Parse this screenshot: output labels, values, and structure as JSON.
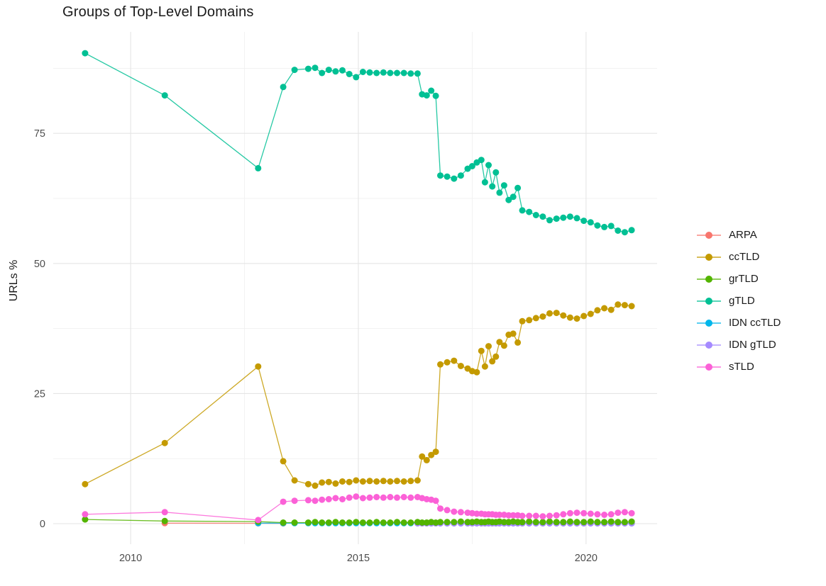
{
  "title": "Groups of Top-Level Domains",
  "axes": {
    "y": {
      "label": "URLs %",
      "ticks": [
        {
          "v": 0,
          "label": "0"
        },
        {
          "v": 25,
          "label": "25"
        },
        {
          "v": 50,
          "label": "50"
        },
        {
          "v": 75,
          "label": "75"
        }
      ],
      "minor": [
        12.5,
        37.5,
        62.5,
        87.5
      ]
    },
    "x": {
      "ticks": [
        {
          "v": 2010,
          "label": "2010"
        },
        {
          "v": 2015,
          "label": "2015"
        },
        {
          "v": 2020,
          "label": "2020"
        }
      ],
      "minor": [
        2012.5,
        2017.5
      ]
    }
  },
  "colors": {
    "background": "#FFFFFF",
    "grid_major": "#E5E5E5",
    "grid_minor": "#F1F1F1",
    "tick_label": "#4D4D4D",
    "title": "#1A1A1A"
  },
  "chart_data": {
    "type": "line",
    "title": "Groups of Top-Level Domains",
    "xlabel": "",
    "ylabel": "URLs %",
    "xlim": [
      2008.3,
      2021.56
    ],
    "ylim": [
      -3.95,
      94.5
    ],
    "grid": true,
    "legend_position": "right",
    "marker_radius": 4.5,
    "x": [
      2009.0,
      2010.75,
      2012.8,
      2013.35,
      2013.6,
      2013.9,
      2014.05,
      2014.2,
      2014.35,
      2014.5,
      2014.65,
      2014.8,
      2014.95,
      2015.1,
      2015.25,
      2015.4,
      2015.55,
      2015.7,
      2015.85,
      2016.0,
      2016.15,
      2016.3,
      2016.4,
      2016.5,
      2016.6,
      2016.7,
      2016.8,
      2016.95,
      2017.1,
      2017.25,
      2017.4,
      2017.5,
      2017.6,
      2017.7,
      2017.78,
      2017.86,
      2017.94,
      2018.02,
      2018.1,
      2018.2,
      2018.3,
      2018.4,
      2018.5,
      2018.6,
      2018.75,
      2018.9,
      2019.05,
      2019.2,
      2019.35,
      2019.5,
      2019.65,
      2019.8,
      2019.95,
      2020.1,
      2020.25,
      2020.4,
      2020.55,
      2020.7,
      2020.85,
      2021.0
    ],
    "series": [
      {
        "name": "ARPA",
        "color": "#F8766D",
        "values": [
          null,
          0.1,
          0.07,
          0.05,
          null,
          null,
          null,
          null,
          null,
          null,
          null,
          null,
          null,
          null,
          null,
          null,
          null,
          null,
          null,
          null,
          null,
          null,
          null,
          null,
          null,
          null,
          null,
          null,
          null,
          null,
          null,
          null,
          null,
          null,
          null,
          null,
          null,
          null,
          null,
          null,
          null,
          null,
          null,
          null,
          null,
          null,
          null,
          null,
          null,
          null,
          null,
          null,
          null,
          null,
          null,
          null,
          null,
          null,
          null,
          null
        ]
      },
      {
        "name": "ccTLD",
        "color": "#C49A00",
        "values": [
          7.6,
          15.5,
          30.2,
          12.0,
          8.3,
          7.6,
          7.3,
          7.9,
          8.0,
          7.7,
          8.1,
          8.0,
          8.3,
          8.1,
          8.2,
          8.1,
          8.2,
          8.1,
          8.2,
          8.1,
          8.2,
          8.3,
          12.9,
          12.2,
          13.2,
          13.8,
          30.6,
          31.0,
          31.3,
          30.3,
          29.8,
          29.3,
          29.1,
          33.2,
          30.2,
          34.1,
          31.2,
          32.1,
          34.9,
          34.2,
          36.3,
          36.5,
          34.8,
          38.9,
          39.1,
          39.5,
          39.8,
          40.4,
          40.5,
          40.0,
          39.6,
          39.4,
          39.9,
          40.3,
          41.0,
          41.4,
          41.1,
          42.1,
          42.0,
          41.8
        ]
      },
      {
        "name": "grTLD",
        "color": "#53B400",
        "values": [
          0.8,
          0.5,
          0.4,
          0.2,
          0.2,
          0.2,
          0.3,
          0.2,
          0.2,
          0.3,
          0.2,
          0.2,
          0.3,
          0.2,
          0.2,
          0.3,
          0.2,
          0.2,
          0.3,
          0.2,
          0.2,
          0.3,
          0.2,
          0.2,
          0.3,
          0.2,
          0.3,
          0.3,
          0.3,
          0.4,
          0.3,
          0.3,
          0.4,
          0.3,
          0.3,
          0.4,
          0.3,
          0.3,
          0.4,
          0.3,
          0.3,
          0.4,
          0.3,
          0.3,
          0.4,
          0.3,
          0.3,
          0.4,
          0.3,
          0.3,
          0.4,
          0.3,
          0.3,
          0.4,
          0.3,
          0.3,
          0.4,
          0.3,
          0.3,
          0.4
        ]
      },
      {
        "name": "gTLD",
        "color": "#00C094",
        "values": [
          90.4,
          82.3,
          68.3,
          83.9,
          87.2,
          87.4,
          87.6,
          86.6,
          87.2,
          86.9,
          87.1,
          86.4,
          85.8,
          86.8,
          86.7,
          86.6,
          86.7,
          86.6,
          86.6,
          86.6,
          86.5,
          86.5,
          82.5,
          82.3,
          83.2,
          82.2,
          66.9,
          66.7,
          66.3,
          66.9,
          68.2,
          68.7,
          69.4,
          69.9,
          65.6,
          68.9,
          64.8,
          67.5,
          63.6,
          65.0,
          62.2,
          62.8,
          64.5,
          60.2,
          59.9,
          59.3,
          59.0,
          58.3,
          58.6,
          58.8,
          59.0,
          58.7,
          58.2,
          57.9,
          57.3,
          57.0,
          57.2,
          56.3,
          56.0,
          56.4
        ]
      },
      {
        "name": "IDN ccTLD",
        "color": "#00B6EB",
        "values": [
          null,
          null,
          0.1,
          0.1,
          0.1,
          0.1,
          0.1,
          0.1,
          0.1,
          0.1,
          0.1,
          0.1,
          0.1,
          0.1,
          0.1,
          0.1,
          0.1,
          0.1,
          0.1,
          0.1,
          0.1,
          0.1,
          0.1,
          0.1,
          0.1,
          0.1,
          0.1,
          0.1,
          0.1,
          0.1,
          0.1,
          0.1,
          0.1,
          0.1,
          0.1,
          0.1,
          0.1,
          0.1,
          0.1,
          0.1,
          0.1,
          0.1,
          0.1,
          0.1,
          0.1,
          0.1,
          0.1,
          0.1,
          0.1,
          0.1,
          0.1,
          0.1,
          0.1,
          0.1,
          0.1,
          0.1,
          0.1,
          0.1,
          0.1,
          0.1
        ]
      },
      {
        "name": "IDN gTLD",
        "color": "#A58AFF",
        "values": [
          null,
          null,
          null,
          null,
          null,
          null,
          null,
          null,
          null,
          null,
          null,
          null,
          null,
          null,
          null,
          null,
          null,
          null,
          null,
          null,
          null,
          0.05,
          0.05,
          0.05,
          0.05,
          0.05,
          0.05,
          0.05,
          0.05,
          0.05,
          0.05,
          0.05,
          0.05,
          0.05,
          0.05,
          0.05,
          0.05,
          0.05,
          0.05,
          0.05,
          0.05,
          0.05,
          0.05,
          0.05,
          0.05,
          0.05,
          0.05,
          0.05,
          0.05,
          0.05,
          0.05,
          0.05,
          0.05,
          0.05,
          0.05,
          0.05,
          0.05,
          0.05,
          0.05,
          0.05
        ]
      },
      {
        "name": "sTLD",
        "color": "#FB61D7",
        "values": [
          1.8,
          2.2,
          0.7,
          4.2,
          4.4,
          4.5,
          4.4,
          4.6,
          4.7,
          4.9,
          4.7,
          5.0,
          5.2,
          4.9,
          5.0,
          5.1,
          5.0,
          5.1,
          5.0,
          5.1,
          5.0,
          5.1,
          4.9,
          4.7,
          4.6,
          4.4,
          2.9,
          2.6,
          2.3,
          2.2,
          2.1,
          2.0,
          1.9,
          1.9,
          1.8,
          1.8,
          1.8,
          1.7,
          1.7,
          1.7,
          1.6,
          1.6,
          1.6,
          1.5,
          1.5,
          1.5,
          1.4,
          1.5,
          1.6,
          1.8,
          2.0,
          2.1,
          2.0,
          1.9,
          1.8,
          1.7,
          1.8,
          2.1,
          2.2,
          2.0
        ]
      }
    ],
    "draw_order": [
      "ARPA",
      "IDN ccTLD",
      "IDN gTLD",
      "ccTLD",
      "grTLD",
      "gTLD",
      "sTLD"
    ]
  }
}
